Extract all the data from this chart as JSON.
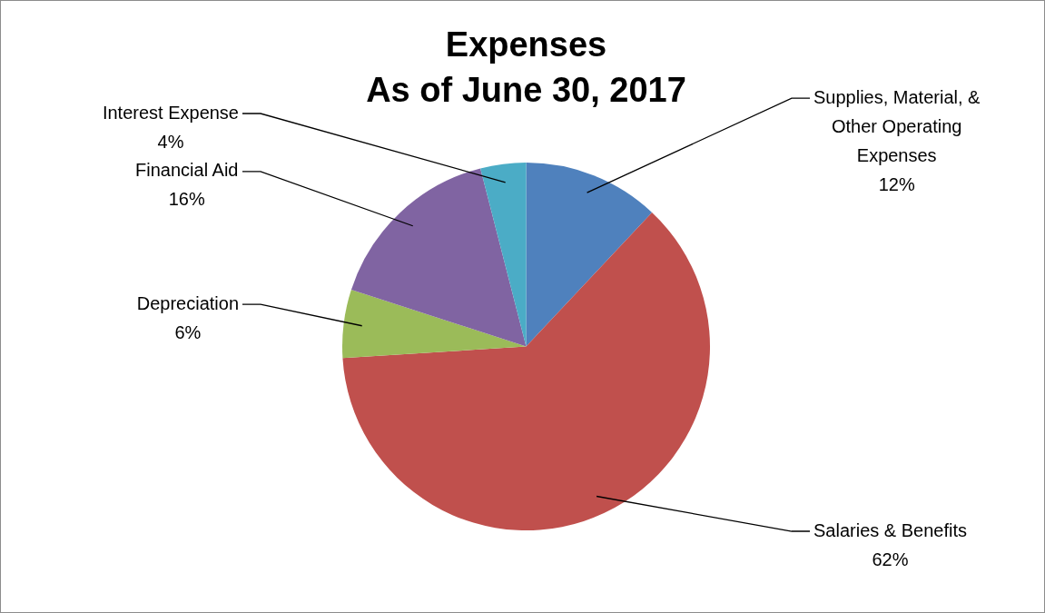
{
  "chart_data": {
    "type": "pie",
    "title": "Expenses",
    "subtitle": "As of June 30, 2017",
    "categories": [
      "Supplies, Material, & Other Operating Expenses",
      "Salaries & Benefits",
      "Depreciation",
      "Financial Aid",
      "Interest Expense"
    ],
    "values": [
      12,
      62,
      6,
      16,
      4
    ],
    "colors": [
      "#4f81bd",
      "#c0504d",
      "#9bbb59",
      "#8064a2",
      "#4bacc6"
    ],
    "value_labels": [
      "12%",
      "62%",
      "6%",
      "16%",
      "4%"
    ],
    "legend": false
  }
}
